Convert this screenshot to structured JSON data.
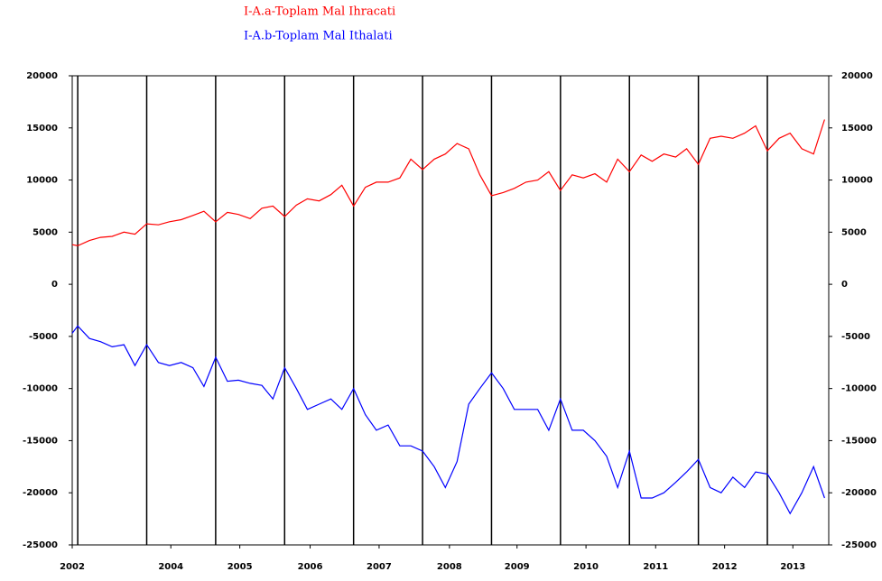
{
  "chart_data": {
    "type": "line",
    "x": [
      2001.92,
      2002,
      2002.17,
      2002.33,
      2002.5,
      2002.67,
      2002.83,
      2003,
      2003.17,
      2003.33,
      2003.5,
      2003.67,
      2003.83,
      2004,
      2004.17,
      2004.33,
      2004.5,
      2004.67,
      2004.83,
      2005,
      2005.17,
      2005.33,
      2005.5,
      2005.67,
      2005.83,
      2006,
      2006.17,
      2006.33,
      2006.5,
      2006.67,
      2006.83,
      2007,
      2007.17,
      2007.33,
      2007.5,
      2007.67,
      2007.83,
      2008,
      2008.17,
      2008.33,
      2008.5,
      2008.67,
      2008.83,
      2009,
      2009.17,
      2009.33,
      2009.5,
      2009.67,
      2009.83,
      2010,
      2010.17,
      2010.33,
      2010.5,
      2010.67,
      2010.83,
      2011,
      2011.17,
      2011.33,
      2011.5,
      2011.67,
      2011.83,
      2012,
      2012.17,
      2012.33,
      2012.5,
      2012.67,
      2012.83
    ],
    "series": [
      {
        "name": "I-A.a-Toplam Mal Ihracati",
        "color": "#ff0000",
        "values": [
          3800,
          3700,
          4200,
          4500,
          4600,
          5000,
          4800,
          5800,
          5700,
          6000,
          6200,
          6600,
          7000,
          6000,
          6900,
          6700,
          6300,
          7300,
          7500,
          6500,
          7600,
          8200,
          8000,
          8600,
          9500,
          7500,
          9300,
          9800,
          9800,
          10200,
          12000,
          11000,
          12000,
          12500,
          13500,
          13000,
          10500,
          8500,
          8800,
          9200,
          9800,
          10000,
          10800,
          9000,
          10500,
          10200,
          10600,
          9800,
          12000,
          10800,
          12400,
          11800,
          12500,
          12200,
          13000,
          11500,
          14000,
          14200,
          14000,
          14500,
          15200,
          12800,
          14000,
          14500,
          13000,
          12500,
          15800
        ]
      },
      {
        "name": "I-A.b-Toplam Mal Ithalati",
        "color": "#0000ff",
        "values": [
          -4700,
          -4000,
          -5200,
          -5500,
          -6000,
          -5800,
          -7800,
          -5800,
          -7500,
          -7800,
          -7500,
          -8000,
          -9800,
          -7000,
          -9300,
          -9200,
          -9500,
          -9700,
          -11000,
          -8000,
          -10000,
          -12000,
          -11500,
          -11000,
          -12000,
          -10000,
          -12500,
          -14000,
          -13500,
          -15500,
          -15500,
          -16000,
          -17500,
          -19500,
          -17000,
          -11500,
          -10000,
          -8500,
          -10000,
          -12000,
          -12000,
          -12000,
          -14000,
          -11000,
          -14000,
          -14000,
          -15000,
          -16500,
          -19500,
          -16000,
          -20500,
          -20500,
          -20000,
          -19000,
          -18000,
          -16800,
          -19500,
          -20000,
          -18500,
          -19500,
          -18000,
          -18200,
          -20000,
          -22000,
          -20000,
          -17500,
          -20500
        ]
      }
    ],
    "xlim": [
      2001.92,
      2012.89
    ],
    "xticks": [
      {
        "value": 2001.92,
        "label": "2002"
      },
      {
        "value": 2003.35,
        "label": "2004"
      },
      {
        "value": 2004.35,
        "label": "2005"
      },
      {
        "value": 2005.37,
        "label": "2006"
      },
      {
        "value": 2006.37,
        "label": "2007"
      },
      {
        "value": 2007.39,
        "label": "2008"
      },
      {
        "value": 2008.37,
        "label": "2009"
      },
      {
        "value": 2009.37,
        "label": "2010"
      },
      {
        "value": 2010.38,
        "label": "2011"
      },
      {
        "value": 2011.38,
        "label": "2012"
      },
      {
        "value": 2012.37,
        "label": "2013"
      }
    ],
    "vlines": [
      2002,
      2003,
      2004,
      2005,
      2006,
      2007,
      2008,
      2009,
      2010,
      2011,
      2012
    ],
    "ylim": [
      -25000,
      20000
    ],
    "yticks": [
      -25000,
      -20000,
      -15000,
      -10000,
      -5000,
      0,
      5000,
      10000,
      15000,
      20000
    ]
  }
}
